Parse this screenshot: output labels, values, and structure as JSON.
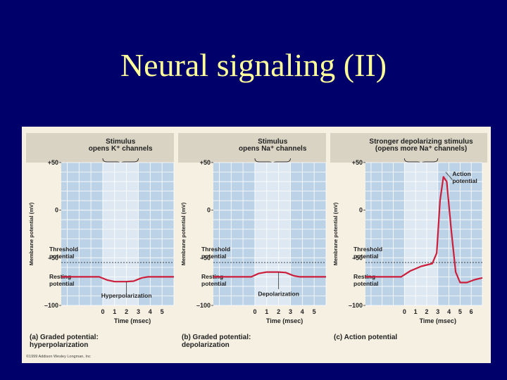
{
  "slide": {
    "title": "Neural signaling (II)"
  },
  "colors": {
    "background": "#00006b",
    "title": "#ffff99",
    "plot_bg": "#bcd2e6",
    "stim_bg": "#dde8f2",
    "grid": "#ffffff",
    "trace": "#cc1e3a",
    "header_bg": "#d9d3c4"
  },
  "chart_data": [
    {
      "type": "line",
      "header": "Stimulus\nopens K⁺ channels",
      "caption": "(a) Graded potential:\nhyperpolarization",
      "ylabel": "Membrane potential (mV)",
      "xlabel": "Time (msec)",
      "ylim": [
        -100,
        50
      ],
      "yticks": [
        50,
        0,
        -50,
        -100
      ],
      "xlim": [
        -3.5,
        6
      ],
      "xticks": [
        0,
        1,
        2,
        3,
        4,
        5
      ],
      "stimulus": [
        0,
        3
      ],
      "threshold": -55,
      "threshold_label": "Threshold\npotential",
      "resting_label": "Resting\npotential",
      "annotation": {
        "text": "Hyperpolarization",
        "x": 2,
        "y": -75
      },
      "x": [
        -3.5,
        -0.3,
        0.4,
        1,
        2,
        2.6,
        3.3,
        3.8,
        4.3,
        6
      ],
      "y": [
        -70,
        -70,
        -73.5,
        -75,
        -75,
        -74.5,
        -71,
        -70,
        -70,
        -70
      ]
    },
    {
      "type": "line",
      "header": "Stimulus\nopens Na⁺ channels",
      "caption": "(b) Graded potential:\ndepolarization",
      "ylabel": "Membrane potential (mV)",
      "xlabel": "Time (msec)",
      "ylim": [
        -100,
        50
      ],
      "yticks": [
        50,
        0,
        -50,
        -100
      ],
      "xlim": [
        -3.5,
        6
      ],
      "xticks": [
        0,
        1,
        2,
        3,
        4,
        5
      ],
      "stimulus": [
        0,
        3
      ],
      "threshold": -55,
      "threshold_label": "Threshold\npotential",
      "resting_label": "Resting\npotential",
      "annotation": {
        "text": "Depolarization",
        "x": 2,
        "y": -65
      },
      "x": [
        -3.5,
        -0.3,
        0.3,
        1,
        2,
        2.6,
        3.3,
        3.8,
        4.3,
        6
      ],
      "y": [
        -70,
        -70,
        -66.5,
        -65,
        -65,
        -65.5,
        -69,
        -70,
        -70,
        -70
      ]
    },
    {
      "type": "line",
      "header": "Stronger depolarizing stimulus\n(opens more Na⁺ channels)",
      "caption": "(c) Action potential",
      "ylabel": "Membrane potential (mV)",
      "xlabel": "Time (msec)",
      "ylim": [
        -100,
        50
      ],
      "yticks": [
        50,
        0,
        -50,
        -100
      ],
      "xlim": [
        -3.5,
        7
      ],
      "xticks": [
        0,
        1,
        2,
        3,
        4,
        5,
        6
      ],
      "stimulus": [
        0,
        3
      ],
      "threshold": -55,
      "threshold_label": "Threshold\npotential",
      "resting_label": "Resting\npotential",
      "annotation": {
        "text": "Action\npotential",
        "x": 3.5,
        "y": 35
      },
      "x": [
        -3.5,
        -0.3,
        0.5,
        1.5,
        2.5,
        2.9,
        3.2,
        3.5,
        3.8,
        4.2,
        4.6,
        5.0,
        5.6,
        6.3,
        7
      ],
      "y": [
        -70,
        -70,
        -64,
        -59,
        -56,
        -45,
        10,
        35,
        30,
        -20,
        -65,
        -76,
        -76,
        -73,
        -71
      ]
    }
  ],
  "credit": "©1999 Addison Wesley Longman, Inc"
}
